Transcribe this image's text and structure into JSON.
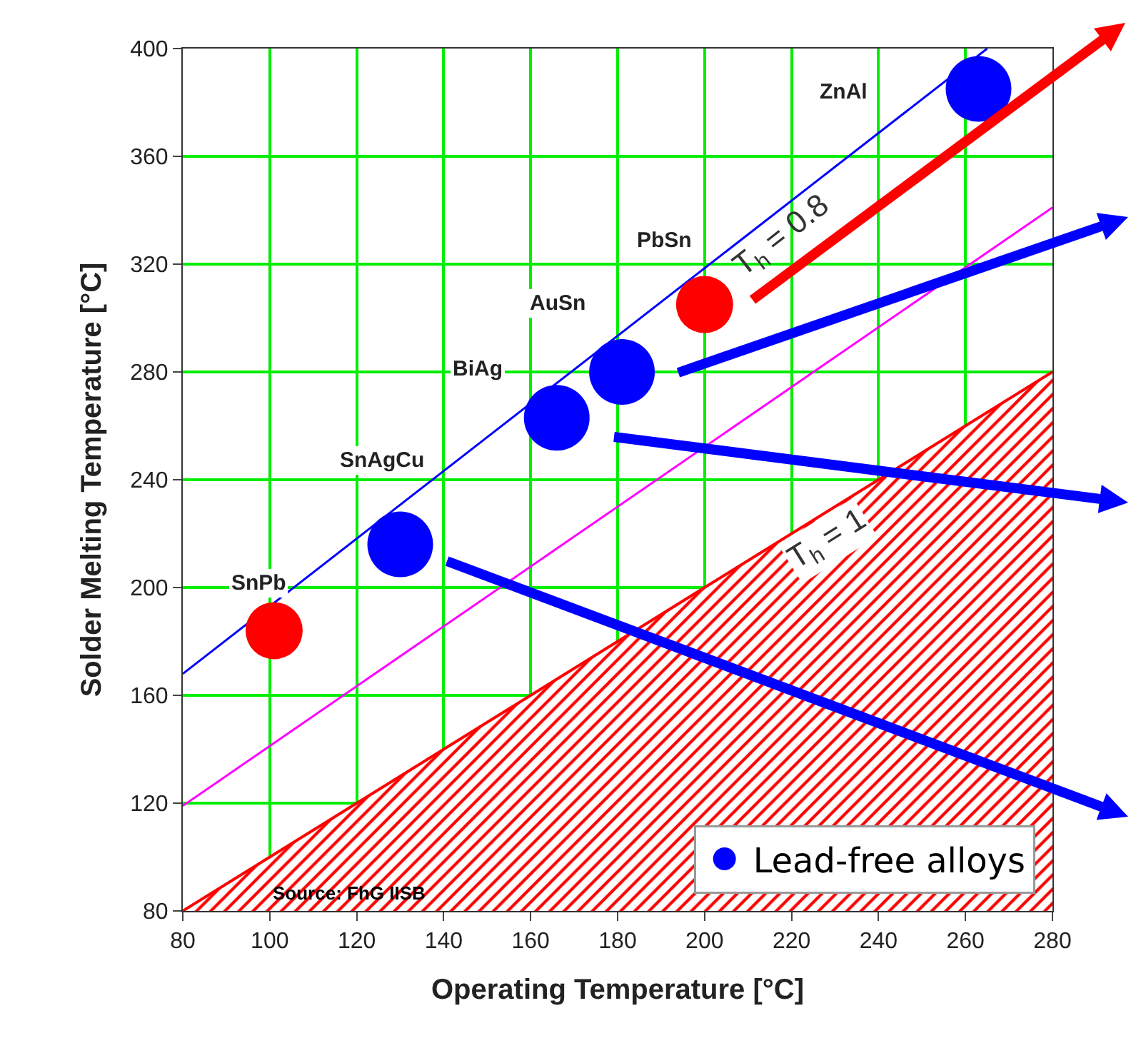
{
  "chart_data": {
    "type": "scatter",
    "xlabel": "Operating Temperature [°C]",
    "ylabel": "Solder Melting Temperature [°C]",
    "xlim": [
      80,
      280
    ],
    "xticks": [
      80,
      100,
      120,
      140,
      160,
      180,
      200,
      220,
      240,
      260,
      280
    ],
    "ylim": [
      80,
      400
    ],
    "yticks": [
      80,
      120,
      160,
      200,
      240,
      280,
      320,
      360,
      400
    ],
    "grid": true,
    "legend": "bottom right",
    "series": [
      {
        "type": "area",
        "color": "#ff0000",
        "x": [
          80,
          280
        ],
        "values": [
          80,
          280
        ]
      },
      {
        "type": "line",
        "color": "#ff00ff",
        "x": [
          80,
          280
        ],
        "values": [
          119,
          341
        ]
      },
      {
        "type": "line",
        "color": "#0000ff",
        "x": [
          80,
          265
        ],
        "values": [
          168,
          400
        ]
      },
      {
        "marker": "circle",
        "color": "#ff0000",
        "x": [
          101,
          200
        ],
        "values": [
          184,
          305
        ]
      },
      {
        "marker": "circle",
        "name": "Lead-free alloys",
        "color": "#0000ff",
        "x": [
          130,
          166,
          181,
          263
        ],
        "values": [
          216,
          263,
          280,
          385
        ]
      }
    ],
    "annotations": [
      "SnPb",
      "SnAgCu",
      "BiAg",
      "AuSn",
      "PbSn",
      "ZnAl",
      "T$_{h}$ = 0.8",
      "T$_{h}$ = 1",
      "Source: FhG IISB"
    ]
  }
}
